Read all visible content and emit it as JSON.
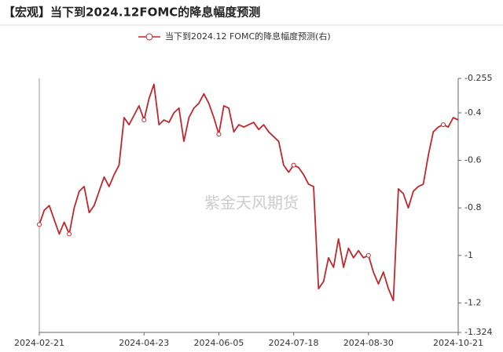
{
  "chart_data": {
    "type": "line",
    "title": "【宏观】当下到2024.12FOMC的降息幅度预测",
    "watermark": "紫金天风期货",
    "categories": [
      "2024-02-21",
      null,
      null,
      null,
      null,
      null,
      null,
      null,
      null,
      null,
      null,
      null,
      null,
      null,
      null,
      null,
      null,
      null,
      null,
      null,
      null,
      "2024-04-23",
      null,
      null,
      null,
      null,
      null,
      null,
      null,
      null,
      null,
      null,
      null,
      null,
      null,
      null,
      "2024-06-05",
      null,
      null,
      null,
      null,
      null,
      null,
      null,
      null,
      null,
      null,
      null,
      null,
      null,
      null,
      "2024-07-18",
      null,
      null,
      null,
      null,
      null,
      null,
      null,
      null,
      null,
      null,
      null,
      null,
      null,
      null,
      "2024-08-30",
      null,
      null,
      null,
      null,
      null,
      null,
      null,
      null,
      null,
      null,
      null,
      null,
      null,
      null,
      null,
      null,
      null,
      "2024-10-21"
    ],
    "series": [
      {
        "name": "当下到2024.12 FOMC的降息幅度预测(右)",
        "color": "#c0272d",
        "axis": "y2",
        "values": [
          -0.87,
          -0.81,
          -0.79,
          -0.85,
          -0.91,
          -0.86,
          -0.91,
          -0.8,
          -0.73,
          -0.71,
          -0.82,
          -0.79,
          -0.73,
          -0.67,
          -0.71,
          -0.66,
          -0.62,
          -0.42,
          -0.45,
          -0.41,
          -0.37,
          -0.43,
          -0.34,
          -0.28,
          -0.45,
          -0.43,
          -0.44,
          -0.4,
          -0.38,
          -0.52,
          -0.42,
          -0.38,
          -0.36,
          -0.32,
          -0.36,
          -0.42,
          -0.49,
          -0.37,
          -0.38,
          -0.48,
          -0.45,
          -0.46,
          -0.45,
          -0.44,
          -0.47,
          -0.45,
          -0.48,
          -0.5,
          -0.52,
          -0.62,
          -0.65,
          -0.62,
          -0.63,
          -0.66,
          -0.7,
          -0.71,
          -1.14,
          -1.11,
          -1.01,
          -1.05,
          -0.93,
          -1.05,
          -0.97,
          -1.01,
          -0.98,
          -1.01,
          -1,
          -1.07,
          -1.12,
          -1.07,
          -1.14,
          -1.19,
          -0.72,
          -0.74,
          -0.8,
          -0.73,
          -0.71,
          -0.7,
          -0.58,
          -0.48,
          -0.46,
          -0.45,
          -0.46,
          -0.42,
          -0.43
        ]
      }
    ],
    "y2lim": [
      -1.324,
      -0.255
    ],
    "y2ticks": [
      -0.255,
      -0.4,
      -0.6,
      -0.8,
      -1,
      -1.2,
      -1.324
    ],
    "grid": false
  }
}
